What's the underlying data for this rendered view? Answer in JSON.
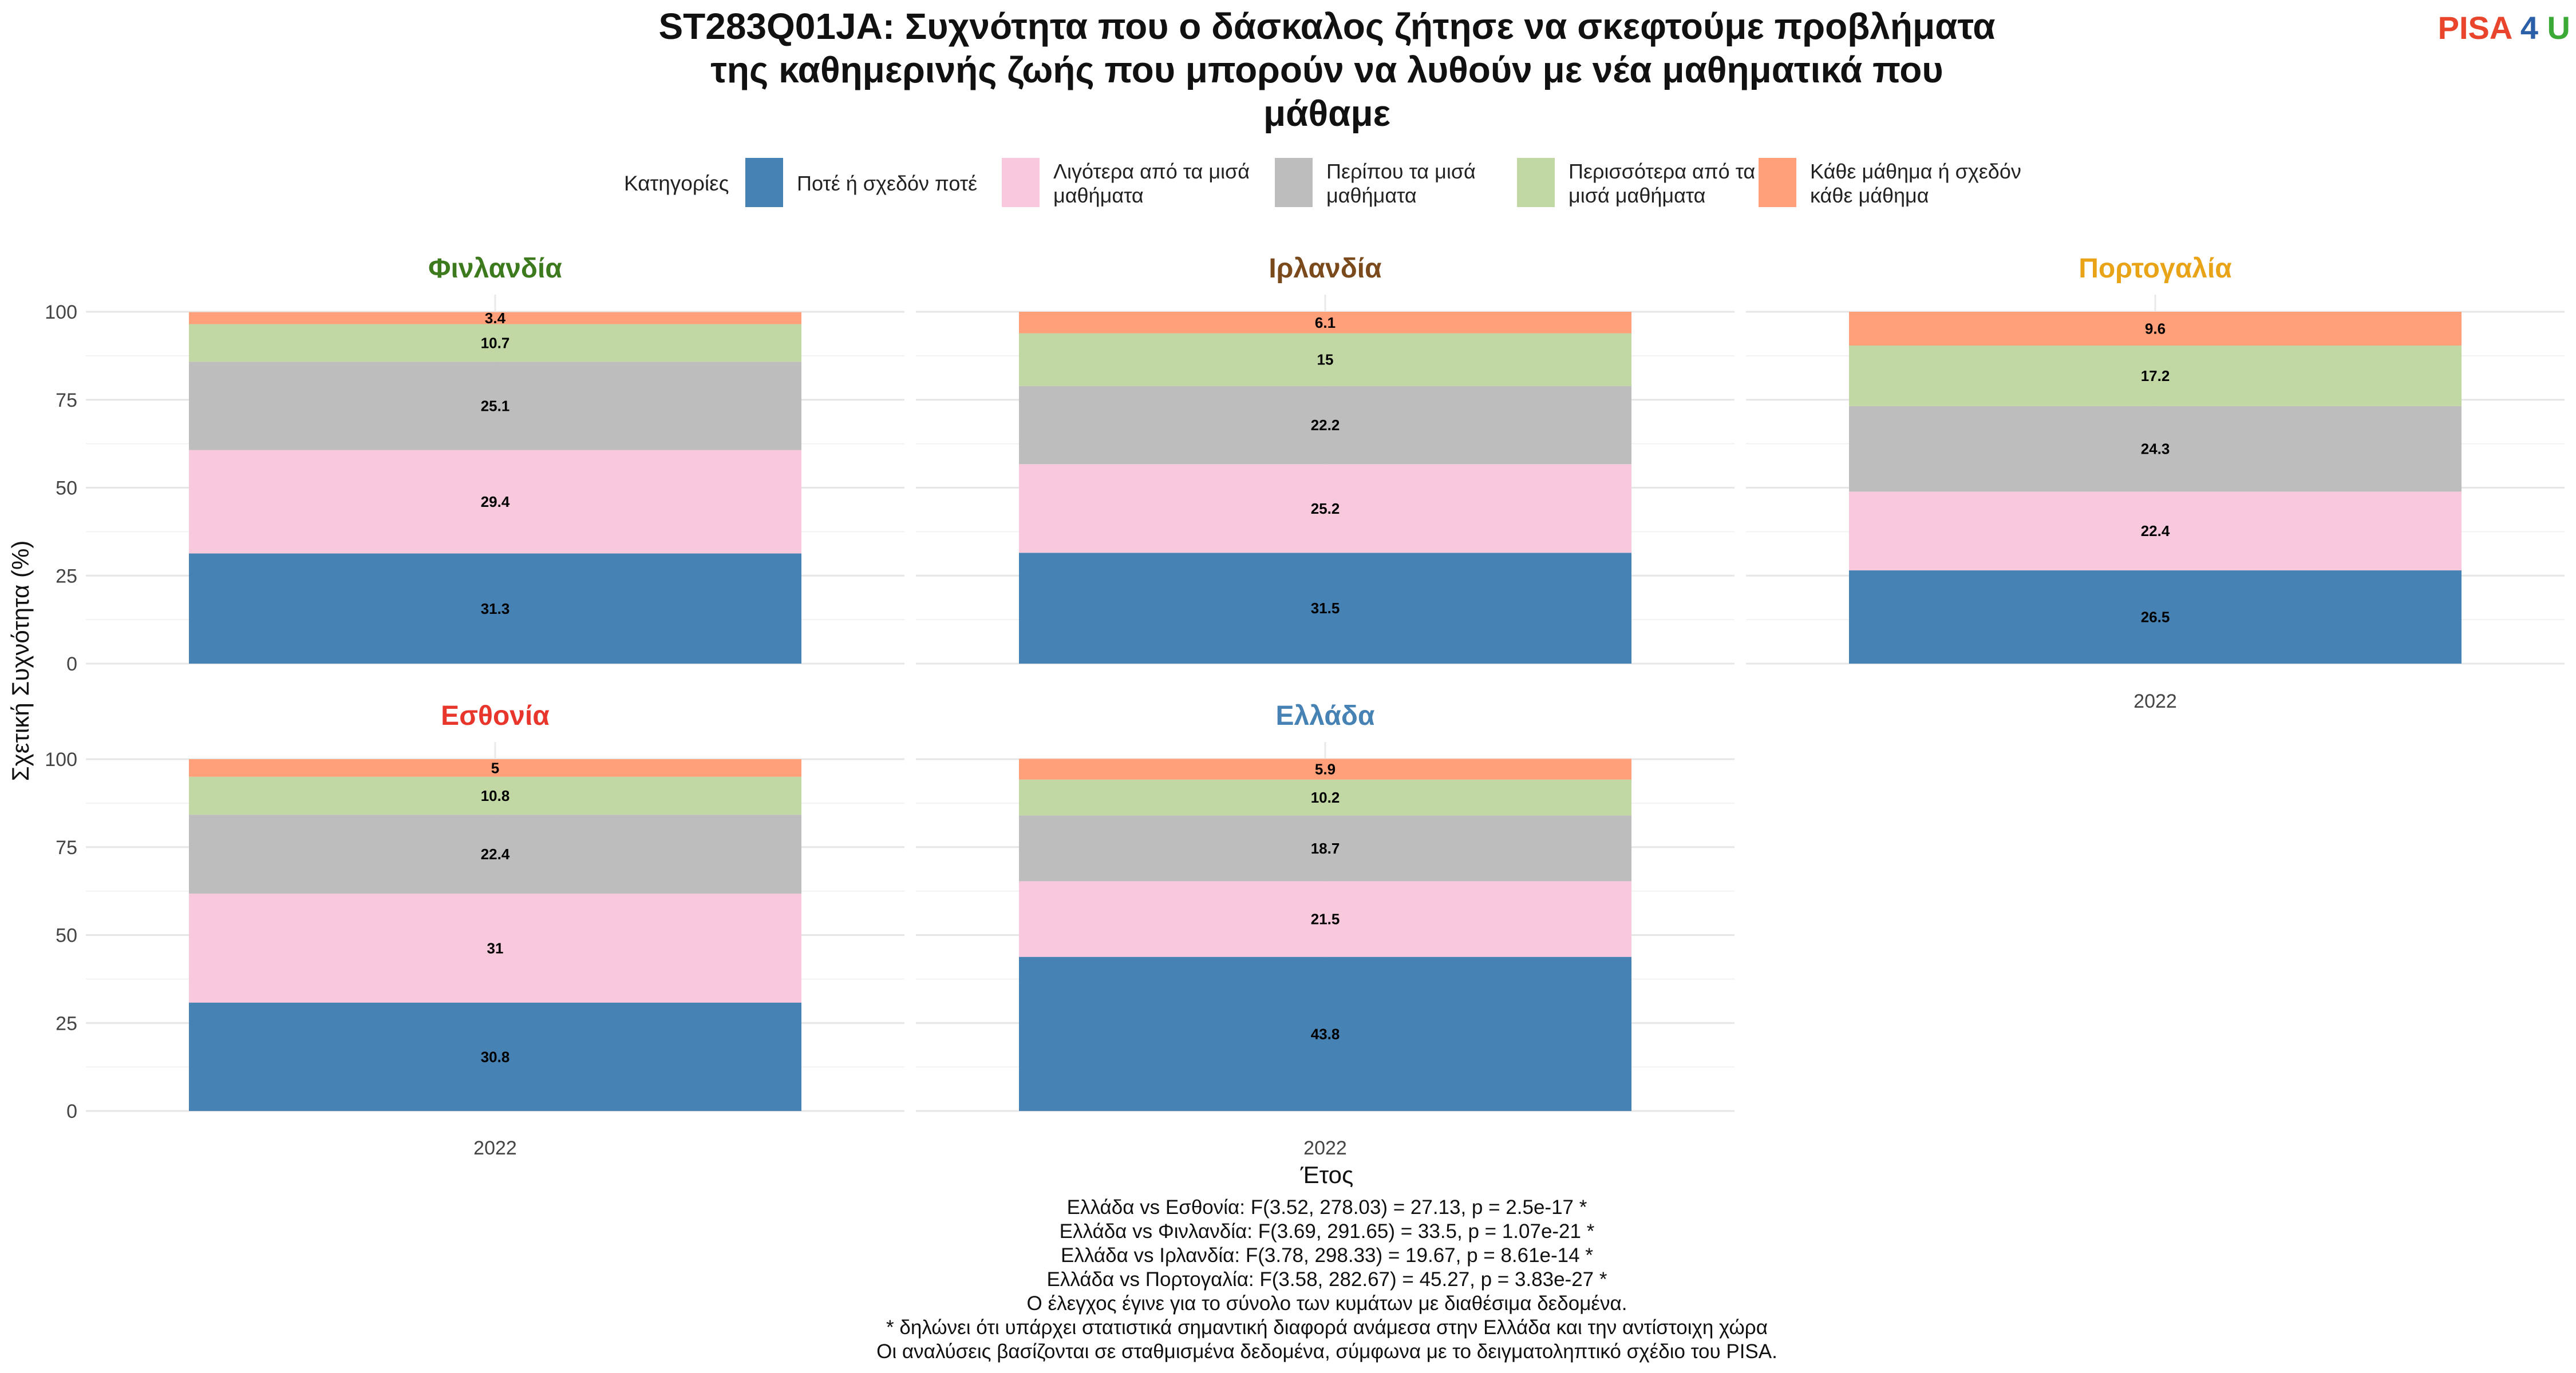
{
  "logo": {
    "text_a": "PISA",
    "text_b": "4",
    "text_c": "U",
    "color_a": "#e8452c",
    "color_b": "#2b5fa8",
    "color_c": "#3aa935"
  },
  "chart_data": {
    "type": "bar",
    "stacked": true,
    "title_lines": [
      "ST283Q01JA: Συχνότητα που ο δάσκαλος ζήτησε να σκεφτούμε προβλήματα",
      "της καθημερινής ζωής που μπορούν να λυθούν με νέα μαθηματικά που",
      "μάθαμε"
    ],
    "xlabel": "Έτος",
    "ylabel": "Σχετική Συχνότητα (%)",
    "ylim": [
      0,
      100
    ],
    "yticks": [
      0,
      25,
      50,
      75,
      100
    ],
    "grid": true,
    "legend": {
      "title": "Κατηγορίες",
      "position": "top",
      "items": [
        {
          "lines": [
            "Ποτέ ή σχεδόν ποτέ"
          ],
          "color": "#4682b4"
        },
        {
          "lines": [
            "Λιγότερα από τα μισά",
            "μαθήματα"
          ],
          "color": "#f8c8dc"
        },
        {
          "lines": [
            "Περίπου τα μισά",
            "μαθήματα"
          ],
          "color": "#bdbdbd"
        },
        {
          "lines": [
            "Περισσότερα από τα",
            "μισά μαθήματα"
          ],
          "color": "#c1d8a4"
        },
        {
          "lines": [
            "Κάθε μάθημα ή σχεδόν",
            "κάθε μάθημα"
          ],
          "color": "#ffa07a"
        }
      ]
    },
    "series_names": [
      "Ποτέ ή σχεδόν ποτέ",
      "Λιγότερα από τα μισά μαθήματα",
      "Περίπου τα μισά μαθήματα",
      "Περισσότερα από τα μισά μαθήματα",
      "Κάθε μάθημα ή σχεδόν κάθε μάθημα"
    ],
    "panels": [
      {
        "country": "Φινλανδία",
        "color": "#3d7a1e",
        "x": "2022",
        "values": [
          31.3,
          29.4,
          25.1,
          10.7,
          3.4
        ],
        "labels": [
          "31.3",
          "29.4",
          "25.1",
          "10.7",
          "3.4"
        ],
        "show_x_tick": false
      },
      {
        "country": "Ιρλανδία",
        "color": "#7b4a1c",
        "x": "2022",
        "values": [
          31.5,
          25.2,
          22.2,
          15,
          6.1
        ],
        "labels": [
          "31.5",
          "25.2",
          "22.2",
          "15",
          "6.1"
        ],
        "show_x_tick": false
      },
      {
        "country": "Πορτογαλία",
        "color": "#e8a317",
        "x": "2022",
        "values": [
          26.5,
          22.4,
          24.3,
          17.2,
          9.6
        ],
        "labels": [
          "26.5",
          "22.4",
          "24.3",
          "17.2",
          "9.6"
        ],
        "show_x_tick": true
      },
      {
        "country": "Εσθονία",
        "color": "#e8362c",
        "x": "2022",
        "values": [
          30.8,
          31,
          22.4,
          10.8,
          5
        ],
        "labels": [
          "30.8",
          "31",
          "22.4",
          "10.8",
          "5"
        ],
        "show_x_tick": true
      },
      {
        "country": "Ελλάδα",
        "color": "#4682b4",
        "x": "2022",
        "values": [
          43.8,
          21.5,
          18.7,
          10.2,
          5.9
        ],
        "labels": [
          "43.8",
          "21.5",
          "18.7",
          "10.2",
          "5.9"
        ],
        "show_x_tick": true
      }
    ],
    "caption_lines": [
      "Ελλάδα vs Εσθονία: F(3.52, 278.03) = 27.13, p = 2.5e-17 *",
      "Ελλάδα vs Φινλανδία: F(3.69, 291.65) = 33.5, p = 1.07e-21 *",
      "Ελλάδα vs Ιρλανδία: F(3.78, 298.33) = 19.67, p = 8.61e-14 *",
      "Ελλάδα vs Πορτογαλία: F(3.58, 282.67) = 45.27, p = 3.83e-27 *",
      "Ο έλεγχος έγινε για το σύνολο των κυμάτων με διαθέσιμα δεδομένα.",
      "* δηλώνει ότι υπάρχει στατιστικά σημαντική διαφορά ανάμεσα στην Ελλάδα και την αντίστοιχη χώρα",
      "Οι αναλύσεις βασίζονται σε σταθμισμένα δεδομένα, σύμφωνα με το δειγματοληπτικό σχέδιο του PISA."
    ]
  }
}
